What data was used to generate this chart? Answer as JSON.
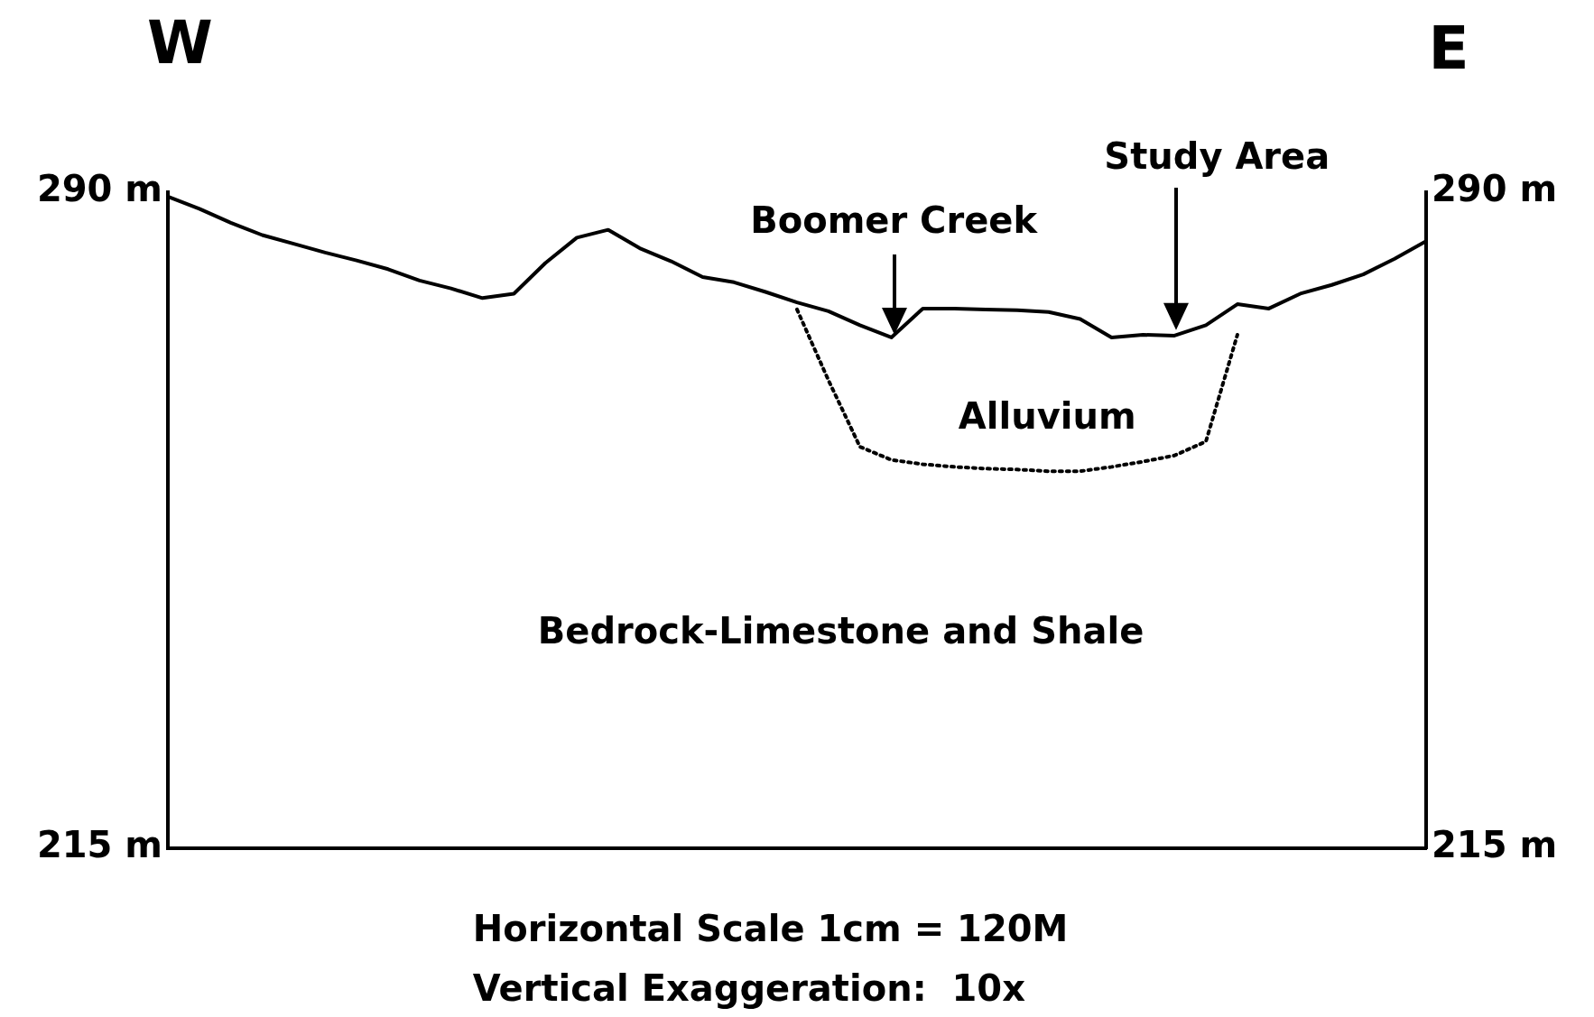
{
  "chart_data": {
    "type": "line",
    "title": "W",
    "subtitle": "E",
    "categories": [
      null,
      null,
      null,
      null,
      null,
      null,
      null,
      null,
      null,
      null,
      null,
      null,
      null,
      null,
      null,
      null,
      null,
      null,
      null,
      null,
      null,
      null,
      null,
      null,
      null,
      null,
      null,
      null,
      null,
      null,
      null,
      null,
      null,
      null,
      null,
      null,
      null,
      null,
      null,
      null,
      null
    ],
    "series": [
      {
        "color": "#000000",
        "line_style": "solid",
        "values": [
          289.5,
          288.1,
          286.5,
          285.1,
          284.1,
          283.1,
          282.2,
          281.2,
          279.9,
          279.0,
          277.9,
          278.4,
          281.9,
          284.8,
          285.7,
          283.6,
          282.1,
          280.3,
          279.7,
          278.6,
          277.4,
          276.4,
          274.8,
          273.4,
          276.7,
          276.7,
          276.6,
          276.5,
          276.3,
          275.5,
          273.4,
          273.7,
          273.6,
          274.8,
          277.2,
          276.7,
          278.4,
          279.4,
          280.6,
          282.4,
          284.4
        ]
      },
      {
        "color": "#000000",
        "line_style": "dotted",
        "values": [
          null,
          null,
          null,
          null,
          null,
          null,
          null,
          null,
          null,
          null,
          null,
          null,
          null,
          null,
          null,
          null,
          null,
          null,
          null,
          null,
          276.6,
          268.5,
          260.9,
          259.4,
          258.9,
          258.6,
          258.4,
          258.3,
          258.1,
          258.1,
          258.6,
          259.2,
          259.9,
          261.5,
          273.7,
          null,
          null,
          null,
          null,
          null,
          null
        ]
      }
    ],
    "ylim": [
      215,
      290
    ],
    "yticks": [
      {
        "value": 215,
        "label": "215 m"
      },
      {
        "value": 290,
        "label": "290 m"
      }
    ],
    "y2lim": [
      215,
      290
    ],
    "y2ticks": [
      {
        "value": 215,
        "label": "215 m"
      },
      {
        "value": 290,
        "label": "290 m"
      }
    ],
    "tick_labels": "y",
    "grid": false,
    "legend": false,
    "marker": "none",
    "annotations": [
      "Study Area",
      "Boomer Creek",
      "Alluvium",
      "Bedrock-Limestone and Shale",
      "Horizontal Scale 1cm = 120M",
      "Vertical Exaggeration:  10x"
    ]
  }
}
